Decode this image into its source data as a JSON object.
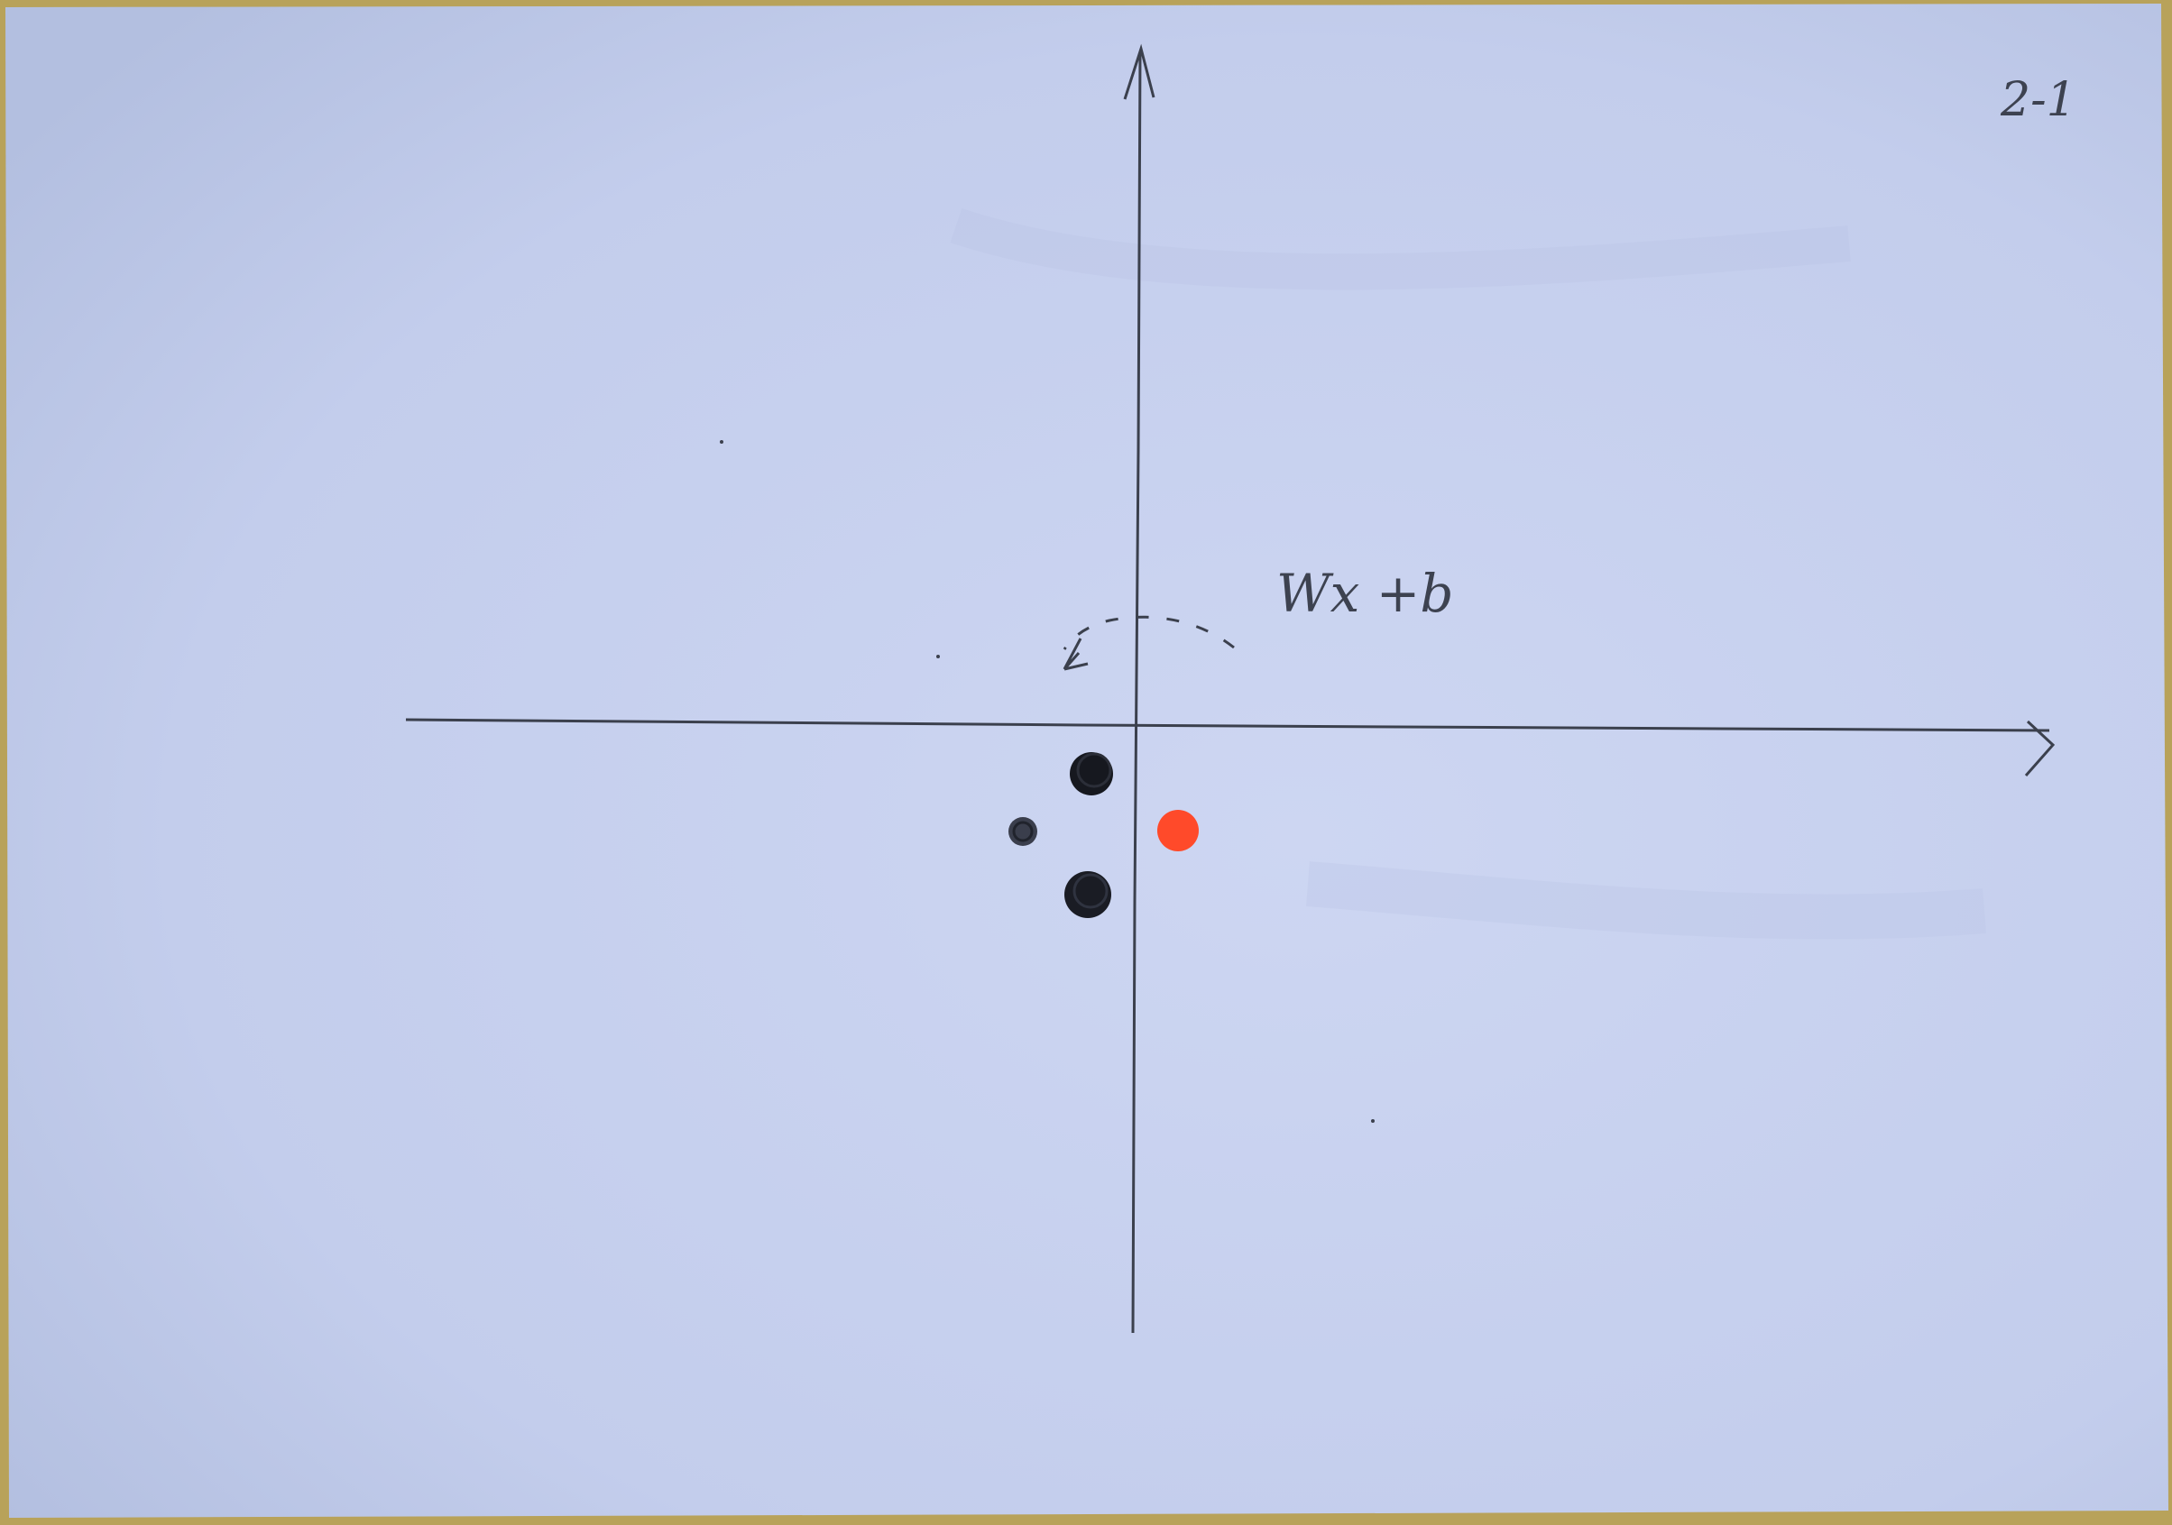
{
  "scene": {
    "description_free": true,
    "page_label": "2-1",
    "annotation": "Wx +b",
    "colors": {
      "paper": "#c8d2ef",
      "paper_shadow": "#b7c2e3",
      "background": "#b8a25a",
      "pencil": "#3b404d",
      "ink_dot": "#16181f",
      "red_dot": "#ff4a2a"
    },
    "icons": [
      "rotate-arrow-icon"
    ]
  }
}
